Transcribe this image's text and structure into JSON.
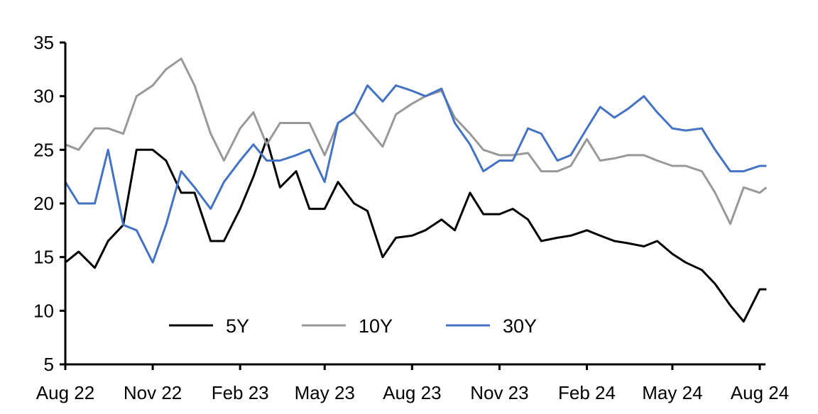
{
  "chart_data": {
    "type": "line",
    "title": "",
    "xlabel": "",
    "ylabel": "",
    "ylim": [
      5,
      35
    ],
    "yticks": [
      5,
      10,
      15,
      20,
      25,
      30,
      35
    ],
    "xlim": [
      "2022-08-01",
      "2024-08-08"
    ],
    "xticks": [
      {
        "date": "2022-08-01",
        "label": "Aug 22"
      },
      {
        "date": "2022-11-01",
        "label": "Nov 22"
      },
      {
        "date": "2023-02-01",
        "label": "Feb 23"
      },
      {
        "date": "2023-05-01",
        "label": "May 23"
      },
      {
        "date": "2023-08-01",
        "label": "Aug 23"
      },
      {
        "date": "2023-11-01",
        "label": "Nov 23"
      },
      {
        "date": "2024-02-01",
        "label": "Feb 24"
      },
      {
        "date": "2024-05-01",
        "label": "May 24"
      },
      {
        "date": "2024-08-01",
        "label": "Aug 24"
      }
    ],
    "grid": false,
    "legend_placement": "bottom-center",
    "x": [
      "2022-08-01",
      "2022-08-15",
      "2022-09-01",
      "2022-09-15",
      "2022-10-01",
      "2022-10-15",
      "2022-11-01",
      "2022-11-15",
      "2022-12-01",
      "2022-12-15",
      "2023-01-01",
      "2023-01-15",
      "2023-02-01",
      "2023-02-15",
      "2023-03-01",
      "2023-03-15",
      "2023-04-01",
      "2023-04-15",
      "2023-05-01",
      "2023-05-15",
      "2023-06-01",
      "2023-06-15",
      "2023-07-01",
      "2023-07-15",
      "2023-08-01",
      "2023-08-15",
      "2023-09-01",
      "2023-09-15",
      "2023-10-01",
      "2023-10-15",
      "2023-11-01",
      "2023-11-15",
      "2023-12-01",
      "2023-12-15",
      "2024-01-01",
      "2024-01-15",
      "2024-02-01",
      "2024-02-15",
      "2024-03-01",
      "2024-03-15",
      "2024-04-01",
      "2024-04-15",
      "2024-05-01",
      "2024-05-15",
      "2024-06-01",
      "2024-06-15",
      "2024-07-01",
      "2024-07-15",
      "2024-08-01",
      "2024-08-08"
    ],
    "series": [
      {
        "name": "5Y",
        "color": "#000000",
        "values": [
          14.5,
          15.5,
          14,
          16.5,
          18,
          25,
          25,
          24,
          21,
          21,
          16.5,
          16.5,
          19.5,
          22.5,
          26,
          21.5,
          23,
          19.5,
          19.5,
          22,
          20,
          19.3,
          15,
          16.8,
          17,
          17.5,
          18.5,
          17.5,
          21,
          19,
          19,
          19.5,
          18.5,
          16.5,
          16.8,
          17,
          17.5,
          17,
          16.5,
          16.3,
          16,
          16.5,
          15.3,
          14.5,
          13.8,
          12.5,
          10.5,
          9,
          12,
          12
        ]
      },
      {
        "name": "10Y",
        "color": "#999999",
        "values": [
          25.5,
          25,
          27,
          27,
          26.5,
          30,
          31,
          32.5,
          33.5,
          31,
          26.5,
          24,
          27,
          28.5,
          25.5,
          27.5,
          27.5,
          27.5,
          24.5,
          27.5,
          28.5,
          27,
          25.3,
          28.3,
          29.3,
          30,
          30.5,
          28,
          26.5,
          25,
          24.5,
          24.5,
          24.7,
          23,
          23,
          23.5,
          26,
          24,
          24.2,
          24.5,
          24.5,
          24,
          23.5,
          23.5,
          23,
          21,
          18.1,
          21.5,
          21,
          21.5
        ]
      },
      {
        "name": "30Y",
        "color": "#4472C4",
        "values": [
          22,
          20,
          20,
          25,
          18,
          17.5,
          14.5,
          18,
          23,
          21.5,
          19.5,
          22,
          24,
          25.5,
          24,
          24,
          24.5,
          25,
          22,
          27.5,
          28.5,
          31,
          29.5,
          31,
          30.5,
          30,
          30.7,
          27.5,
          25.5,
          23,
          24,
          24,
          27,
          26.5,
          24,
          24.5,
          27,
          29,
          28,
          28.8,
          30,
          28.5,
          27,
          26.8,
          27,
          25,
          23,
          23,
          23.5,
          23.5
        ]
      }
    ]
  }
}
